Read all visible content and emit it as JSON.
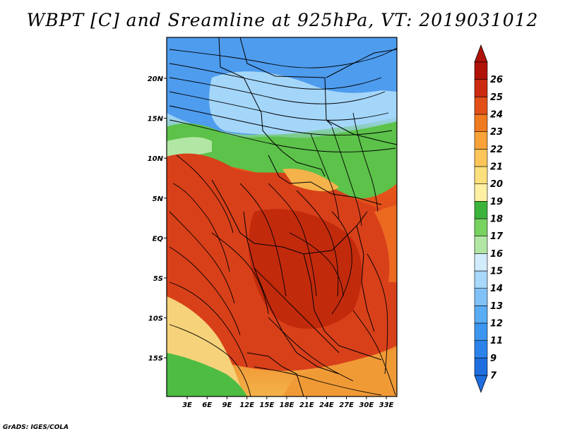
{
  "title": "WBPT [C] and Sreamline at 925hPa, VT: 2019031012",
  "credit": "GrADS: IGES/COLA",
  "map": {
    "longitude_labels": [
      "3E",
      "6E",
      "9E",
      "12E",
      "15E",
      "18E",
      "21E",
      "24E",
      "27E",
      "30E",
      "33E"
    ],
    "latitude_labels": [
      "20N",
      "15N",
      "10N",
      "5N",
      "EQ",
      "5S",
      "10S",
      "15S"
    ]
  },
  "colorbar": {
    "levels": [
      "7",
      "9",
      "11",
      "12",
      "13",
      "14",
      "15",
      "16",
      "17",
      "18",
      "19",
      "20",
      "21",
      "22",
      "23",
      "24",
      "25",
      "26"
    ],
    "colors": [
      "#1e6ee0",
      "#2b82ea",
      "#3c96f0",
      "#5aacf5",
      "#80c2f8",
      "#a8d8fb",
      "#d2ecfc",
      "#b2e6a4",
      "#78d260",
      "#3cb43c",
      "#fff0a4",
      "#fde07e",
      "#fbc55a",
      "#f8a238",
      "#f07a20",
      "#e25018",
      "#cc2a10",
      "#b01208"
    ]
  },
  "legend_names": {
    "colorbar": "wbpt-colorbar"
  }
}
